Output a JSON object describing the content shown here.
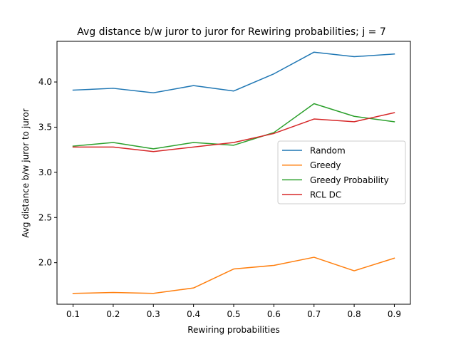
{
  "chart_data": {
    "type": "line",
    "title": "Avg distance b/w juror to juror for Rewiring probabilities; j = 7",
    "xlabel": "Rewiring probabilities",
    "ylabel": "Avg distance b/w juror to juror",
    "x": [
      0.1,
      0.2,
      0.3,
      0.4,
      0.5,
      0.6,
      0.7,
      0.8,
      0.9
    ],
    "x_tick_labels": [
      "0.1",
      "0.2",
      "0.3",
      "0.4",
      "0.5",
      "0.6",
      "0.7",
      "0.8",
      "0.9"
    ],
    "y_ticks": [
      2.0,
      2.5,
      3.0,
      3.5,
      4.0
    ],
    "y_tick_labels": [
      "2.0",
      "2.5",
      "3.0",
      "3.5",
      "4.0"
    ],
    "xlim": [
      0.06,
      0.94
    ],
    "ylim": [
      1.54,
      4.45
    ],
    "grid": false,
    "legend_position": "center-right",
    "series": [
      {
        "name": "Random",
        "color": "#1f77b4",
        "values": [
          3.91,
          3.93,
          3.88,
          3.96,
          3.9,
          4.09,
          4.33,
          4.28,
          4.31
        ]
      },
      {
        "name": "Greedy",
        "color": "#ff7f0e",
        "values": [
          1.66,
          1.67,
          1.66,
          1.72,
          1.93,
          1.97,
          2.06,
          1.91,
          2.05
        ]
      },
      {
        "name": "Greedy Probability",
        "color": "#2ca02c",
        "values": [
          3.29,
          3.33,
          3.26,
          3.33,
          3.3,
          3.44,
          3.76,
          3.62,
          3.56
        ]
      },
      {
        "name": "RCL DC",
        "color": "#d62728",
        "values": [
          3.28,
          3.28,
          3.23,
          3.28,
          3.33,
          3.43,
          3.59,
          3.56,
          3.66
        ]
      }
    ]
  }
}
